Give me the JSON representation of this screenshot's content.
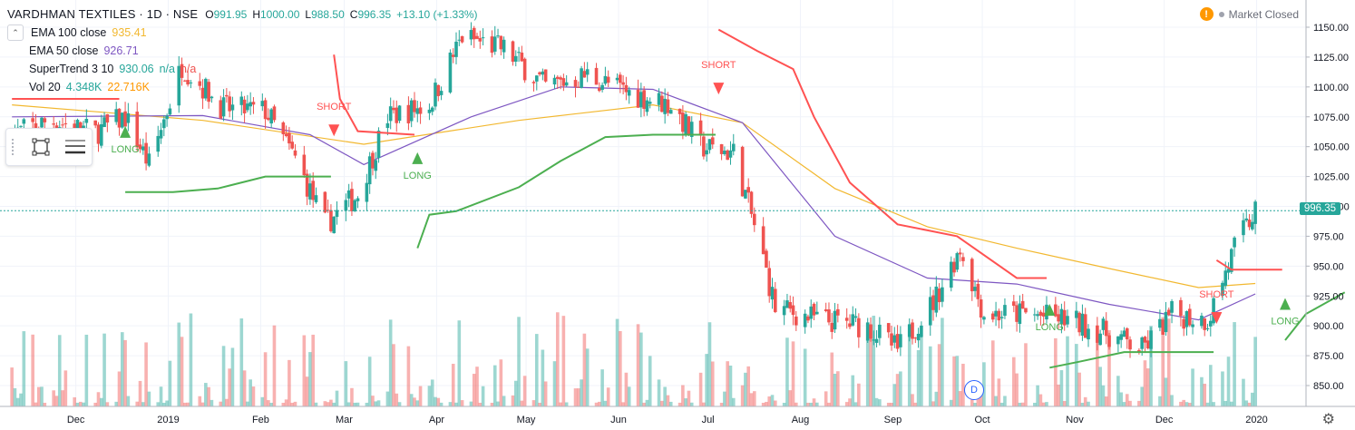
{
  "header": {
    "symbol": "VARDHMAN TEXTILES · 1D · NSE",
    "ohlc": [
      {
        "k": "O",
        "v": "991.95"
      },
      {
        "k": "H",
        "v": "1000.00"
      },
      {
        "k": "L",
        "v": "988.50"
      },
      {
        "k": "C",
        "v": "996.35"
      },
      {
        "k": "",
        "v": "+13.10 (+1.33%)"
      }
    ],
    "market_status": "Market Closed",
    "market_icon": "warning-icon"
  },
  "indicators": [
    {
      "name": "EMA 100 close",
      "values": [
        "935.41"
      ],
      "colors": [
        "#f2b830"
      ]
    },
    {
      "name": "EMA 50 close",
      "values": [
        "926.71"
      ],
      "colors": [
        "#7e57c2"
      ]
    },
    {
      "name": "SuperTrend 3 10",
      "values": [
        "930.06",
        "n/a",
        "n/a"
      ],
      "colors": [
        "#26a69a",
        "#26a69a",
        "#ef5350"
      ]
    },
    {
      "name": "Vol 20",
      "values": [
        "4.348K",
        "22.716K"
      ],
      "colors": [
        "#26a69a",
        "#ff9800"
      ]
    }
  ],
  "last_price_label": "996.35",
  "d_marker_label": "D",
  "colors": {
    "up": "#26a69a",
    "down": "#ef5350",
    "long": "#4caf50",
    "short": "#ff5252",
    "ema100": "#f2b830",
    "ema50": "#7e57c2"
  },
  "chart_data": {
    "type": "candlestick",
    "title": "VARDHMAN TEXTILES · 1D · NSE",
    "x_tick_labels": [
      "Dec",
      "2019",
      "Feb",
      "Mar",
      "Apr",
      "May",
      "Jun",
      "Jul",
      "Aug",
      "Sep",
      "Oct",
      "Nov",
      "Dec",
      "2020"
    ],
    "y_tick_labels": [
      "850.00",
      "875.00",
      "900.00",
      "925.00",
      "950.00",
      "975.00",
      "1000.00",
      "1025.00",
      "1050.00",
      "1075.00",
      "1100.00",
      "1125.00",
      "1150.00"
    ],
    "ylim": [
      838,
      1160
    ],
    "last_close": 996.35,
    "price_path": [
      {
        "date": "2018-11-12",
        "close": 1060
      },
      {
        "date": "2018-11-25",
        "close": 1072
      },
      {
        "date": "2018-12-10",
        "close": 1062
      },
      {
        "date": "2018-12-20",
        "close": 1075
      },
      {
        "date": "2018-12-28",
        "close": 1035
      },
      {
        "date": "2019-01-08",
        "close": 1118
      },
      {
        "date": "2019-01-22",
        "close": 1082
      },
      {
        "date": "2019-02-05",
        "close": 1080
      },
      {
        "date": "2019-02-15",
        "close": 1040
      },
      {
        "date": "2019-02-25",
        "close": 985
      },
      {
        "date": "2019-03-08",
        "close": 1010
      },
      {
        "date": "2019-03-18",
        "close": 1075
      },
      {
        "date": "2019-04-01",
        "close": 1085
      },
      {
        "date": "2019-04-12",
        "close": 1142
      },
      {
        "date": "2019-04-26",
        "close": 1132
      },
      {
        "date": "2019-05-10",
        "close": 1100
      },
      {
        "date": "2019-05-24",
        "close": 1110
      },
      {
        "date": "2019-06-07",
        "close": 1095
      },
      {
        "date": "2019-06-21",
        "close": 1085
      },
      {
        "date": "2019-07-01",
        "close": 1050
      },
      {
        "date": "2019-07-12",
        "close": 1045
      },
      {
        "date": "2019-07-20",
        "close": 975
      },
      {
        "date": "2019-07-26",
        "close": 915
      },
      {
        "date": "2019-08-10",
        "close": 905
      },
      {
        "date": "2019-08-26",
        "close": 900
      },
      {
        "date": "2019-09-05",
        "close": 880
      },
      {
        "date": "2019-09-17",
        "close": 920
      },
      {
        "date": "2019-09-26",
        "close": 965
      },
      {
        "date": "2019-10-04",
        "close": 910
      },
      {
        "date": "2019-10-18",
        "close": 910
      },
      {
        "date": "2019-11-01",
        "close": 905
      },
      {
        "date": "2019-11-13",
        "close": 895
      },
      {
        "date": "2019-11-26",
        "close": 880
      },
      {
        "date": "2019-12-06",
        "close": 910
      },
      {
        "date": "2019-12-18",
        "close": 905
      },
      {
        "date": "2019-12-27",
        "close": 965
      },
      {
        "date": "2020-01-03",
        "close": 996
      }
    ],
    "series": [
      {
        "name": "EMA 100 close",
        "points": [
          {
            "date": "2018-11-12",
            "value": 1085
          },
          {
            "date": "2019-01-15",
            "value": 1072
          },
          {
            "date": "2019-03-10",
            "value": 1052
          },
          {
            "date": "2019-05-01",
            "value": 1072
          },
          {
            "date": "2019-06-15",
            "value": 1085
          },
          {
            "date": "2019-07-15",
            "value": 1070
          },
          {
            "date": "2019-08-15",
            "value": 1015
          },
          {
            "date": "2019-09-15",
            "value": 983
          },
          {
            "date": "2019-10-15",
            "value": 965
          },
          {
            "date": "2019-11-15",
            "value": 948
          },
          {
            "date": "2019-12-15",
            "value": 932
          },
          {
            "date": "2020-01-03",
            "value": 935.41
          }
        ]
      },
      {
        "name": "EMA 50 close",
        "points": [
          {
            "date": "2018-11-12",
            "value": 1075
          },
          {
            "date": "2019-01-15",
            "value": 1076
          },
          {
            "date": "2019-02-20",
            "value": 1060
          },
          {
            "date": "2019-03-10",
            "value": 1035
          },
          {
            "date": "2019-04-15",
            "value": 1075
          },
          {
            "date": "2019-05-15",
            "value": 1100
          },
          {
            "date": "2019-06-15",
            "value": 1098
          },
          {
            "date": "2019-07-15",
            "value": 1070
          },
          {
            "date": "2019-08-15",
            "value": 975
          },
          {
            "date": "2019-09-15",
            "value": 940
          },
          {
            "date": "2019-10-15",
            "value": 935
          },
          {
            "date": "2019-11-15",
            "value": 918
          },
          {
            "date": "2019-12-15",
            "value": 905
          },
          {
            "date": "2020-01-03",
            "value": 926.71
          }
        ]
      }
    ],
    "supertrend": {
      "segments": [
        {
          "dir": "short",
          "points": [
            {
              "date": "2018-11-12",
              "value": 1090
            },
            {
              "date": "2018-12-18",
              "value": 1090
            }
          ]
        },
        {
          "dir": "long",
          "points": [
            {
              "date": "2018-12-20",
              "value": 1012
            },
            {
              "date": "2019-01-05",
              "value": 1012
            },
            {
              "date": "2019-01-20",
              "value": 1015
            },
            {
              "date": "2019-02-05",
              "value": 1025
            },
            {
              "date": "2019-02-27",
              "value": 1025
            }
          ]
        },
        {
          "dir": "short",
          "points": [
            {
              "date": "2019-02-28",
              "value": 1127
            },
            {
              "date": "2019-03-02",
              "value": 1090
            },
            {
              "date": "2019-03-08",
              "value": 1063
            },
            {
              "date": "2019-03-27",
              "value": 1060
            }
          ]
        },
        {
          "dir": "long",
          "points": [
            {
              "date": "2019-03-28",
              "value": 965
            },
            {
              "date": "2019-04-01",
              "value": 993
            },
            {
              "date": "2019-04-10",
              "value": 996
            },
            {
              "date": "2019-05-01",
              "value": 1016
            },
            {
              "date": "2019-05-15",
              "value": 1038
            },
            {
              "date": "2019-05-30",
              "value": 1058
            },
            {
              "date": "2019-06-15",
              "value": 1060
            },
            {
              "date": "2019-07-06",
              "value": 1060
            }
          ]
        },
        {
          "dir": "short",
          "points": [
            {
              "date": "2019-07-07",
              "value": 1148
            },
            {
              "date": "2019-07-20",
              "value": 1130
            },
            {
              "date": "2019-08-01",
              "value": 1115
            },
            {
              "date": "2019-08-08",
              "value": 1075
            },
            {
              "date": "2019-08-20",
              "value": 1020
            },
            {
              "date": "2019-09-05",
              "value": 985
            },
            {
              "date": "2019-09-25",
              "value": 975
            },
            {
              "date": "2019-10-15",
              "value": 940
            },
            {
              "date": "2019-10-25",
              "value": 940
            }
          ]
        },
        {
          "dir": "long",
          "points": [
            {
              "date": "2019-10-26",
              "value": 865
            },
            {
              "date": "2019-11-05",
              "value": 870
            },
            {
              "date": "2019-11-20",
              "value": 878
            },
            {
              "date": "2019-12-20",
              "value": 878
            }
          ]
        },
        {
          "dir": "short",
          "points": [
            {
              "date": "2019-12-21",
              "value": 955
            },
            {
              "date": "2019-12-26",
              "value": 947
            },
            {
              "date": "2020-01-12",
              "value": 947
            }
          ]
        },
        {
          "dir": "long",
          "points": [
            {
              "date": "2020-01-13",
              "value": 888
            },
            {
              "date": "2020-01-20",
              "value": 910
            },
            {
              "date": "2020-02-02",
              "value": 928
            }
          ]
        }
      ],
      "signals": [
        {
          "type": "LONG",
          "date": "2018-12-20",
          "value": 1062
        },
        {
          "type": "SHORT",
          "date": "2019-02-28",
          "value": 1064
        },
        {
          "type": "LONG",
          "date": "2019-03-28",
          "value": 1040
        },
        {
          "type": "SHORT",
          "date": "2019-07-07",
          "value": 1099
        },
        {
          "type": "LONG",
          "date": "2019-10-26",
          "value": 913
        },
        {
          "type": "SHORT",
          "date": "2019-12-21",
          "value": 907
        },
        {
          "type": "LONG",
          "date": "2020-01-13",
          "value": 918
        }
      ]
    },
    "volume_legend": [
      "4.348K",
      "22.716K"
    ],
    "grid": true,
    "legend_position": "top-left"
  }
}
